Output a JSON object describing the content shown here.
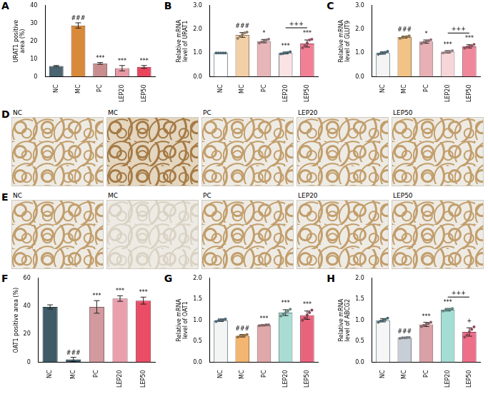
{
  "chart_data": [
    {
      "panel_label": "A",
      "type": "bar",
      "y_label": "URAT1 positive area (%)",
      "categories": [
        "NC",
        "MC",
        "PC",
        "LEP20",
        "LEP50"
      ],
      "values": [
        6,
        28.8,
        7.5,
        4.8,
        5.5
      ],
      "errors": [
        0.3,
        1.5,
        0.5,
        1.5,
        0.8
      ],
      "colors": [
        "#4a6470",
        "#d9893a",
        "#c98c8f",
        "#e79aa6",
        "#e8455f"
      ],
      "ylim": [
        0,
        40
      ],
      "yticks": [
        0,
        10,
        20,
        30,
        40
      ],
      "grid": false,
      "significance": [
        null,
        "###",
        "***",
        "***",
        "***"
      ]
    },
    {
      "panel_label": "B",
      "type": "bar",
      "y_label": "Relative mRNA level of URAT1",
      "categories": [
        "NC",
        "MC",
        "PC",
        "LEP20",
        "LEP50"
      ],
      "values": [
        1.0,
        1.76,
        1.5,
        1.0,
        1.4
      ],
      "errors": [
        0,
        0.1,
        0.07,
        0.04,
        0.15
      ],
      "points": [
        [
          1.0,
          1.0,
          1.0,
          1.0,
          1.0
        ],
        [
          1.62,
          1.7,
          1.78,
          1.85,
          1.88
        ],
        [
          1.42,
          1.47,
          1.5,
          1.55,
          1.58
        ],
        [
          0.96,
          0.98,
          1.0,
          1.02,
          1.05
        ],
        [
          1.22,
          1.3,
          1.42,
          1.55,
          1.58
        ]
      ],
      "colors": [
        "#ffffff",
        "#f3cfa6",
        "#e8b6b9",
        "#fbe3e5",
        "#f27f96"
      ],
      "ylim": [
        0,
        3
      ],
      "yticks": [
        {
          "value": 0,
          "label": "0.0"
        },
        {
          "value": 1,
          "label": "1.0"
        },
        {
          "value": 2,
          "label": "2.0"
        },
        {
          "value": 3,
          "label": "3.0"
        }
      ],
      "grid": false,
      "significance": [
        null,
        "###",
        "*",
        "***",
        "***"
      ],
      "brackets": [
        {
          "text": "+++",
          "from": "LEP20",
          "to": "LEP50"
        }
      ]
    },
    {
      "panel_label": "C",
      "type": "bar",
      "y_label": "Relative mRNA level of GLUT9",
      "categories": [
        "NC",
        "MC",
        "PC",
        "LEP20",
        "LEP50"
      ],
      "values": [
        1.0,
        1.67,
        1.48,
        1.05,
        1.28
      ],
      "errors": [
        0.05,
        0.04,
        0.07,
        0.05,
        0.07
      ],
      "points": [
        [
          0.95,
          0.98,
          1.0,
          1.03,
          1.07
        ],
        [
          1.62,
          1.65,
          1.67,
          1.69,
          1.72
        ],
        [
          1.4,
          1.45,
          1.48,
          1.52,
          1.56
        ],
        [
          1.0,
          1.03,
          1.05,
          1.07,
          1.1
        ],
        [
          1.2,
          1.25,
          1.28,
          1.31,
          1.36
        ]
      ],
      "colors": [
        "#f4f4f4",
        "#f2c287",
        "#e6b0b4",
        "#f6d6d8",
        "#f0889c"
      ],
      "ylim": [
        0,
        3
      ],
      "yticks": [
        {
          "value": 0,
          "label": "0.0"
        },
        {
          "value": 1,
          "label": "1.0"
        },
        {
          "value": 2,
          "label": "2.0"
        },
        {
          "value": 3,
          "label": "3.0"
        }
      ],
      "grid": false,
      "significance": [
        null,
        "###",
        "*",
        "***",
        "***"
      ],
      "brackets": [
        {
          "text": "+++",
          "from": "LEP20",
          "to": "LEP50"
        }
      ]
    },
    {
      "panel_label": "F",
      "type": "bar",
      "y_label": "OAT1 positive area (%)",
      "categories": [
        "NC",
        "MC",
        "PC",
        "LEP20",
        "LEP50"
      ],
      "values": [
        39.5,
        2,
        39.5,
        45.5,
        44
      ],
      "errors": [
        1.5,
        1.5,
        4.5,
        2,
        2.5
      ],
      "colors": [
        "#3f5b68",
        "#33505e",
        "#d29a9e",
        "#ea9fac",
        "#eb4d66"
      ],
      "ylim": [
        0,
        60
      ],
      "yticks": [
        0,
        20,
        40,
        60
      ],
      "grid": false,
      "significance": [
        null,
        "###",
        "***",
        "***",
        "***"
      ]
    },
    {
      "panel_label": "G",
      "type": "bar",
      "y_label": "Relative mRNA level of OAT1",
      "categories": [
        "NC",
        "MC",
        "PC",
        "LEP20",
        "LEP50"
      ],
      "values": [
        1.0,
        0.63,
        0.88,
        1.18,
        1.12
      ],
      "errors": [
        0.03,
        0.03,
        0.01,
        0.07,
        0.1
      ],
      "points": [
        [
          0.97,
          0.99,
          1.0,
          1.01,
          1.03
        ],
        [
          0.6,
          0.62,
          0.63,
          0.64,
          0.66
        ],
        [
          0.87,
          0.88,
          0.88,
          0.89,
          0.89
        ],
        [
          1.1,
          1.15,
          1.18,
          1.22,
          1.26
        ],
        [
          1.0,
          1.05,
          1.12,
          1.18,
          1.24
        ]
      ],
      "colors": [
        "#f4f4f4",
        "#f3b56f",
        "#e0a8aa",
        "#a9ddd4",
        "#e8647d"
      ],
      "ylim": [
        0,
        2
      ],
      "yticks": [
        {
          "value": 0,
          "label": "0.0"
        },
        {
          "value": 0.5,
          "label": "0.5"
        },
        {
          "value": 1,
          "label": "1.0"
        },
        {
          "value": 1.5,
          "label": "1.5"
        },
        {
          "value": 2,
          "label": "2.0"
        }
      ],
      "grid": false,
      "significance": [
        null,
        "###",
        "***",
        "***",
        "***"
      ]
    },
    {
      "panel_label": "H",
      "type": "bar",
      "y_label": "Relative mRNA level of ABCG2",
      "categories": [
        "NC",
        "MC",
        "PC",
        "LEP20",
        "LEP50"
      ],
      "values": [
        1.0,
        0.58,
        0.9,
        1.25,
        0.72
      ],
      "errors": [
        0.04,
        0.01,
        0.05,
        0.03,
        0.1
      ],
      "points": [
        [
          0.95,
          0.98,
          1.0,
          1.02,
          1.05
        ],
        [
          0.57,
          0.58,
          0.58,
          0.59,
          0.59
        ],
        [
          0.85,
          0.88,
          0.9,
          0.92,
          0.95
        ],
        [
          1.22,
          1.24,
          1.25,
          1.26,
          1.28
        ],
        [
          0.6,
          0.65,
          0.72,
          0.78,
          0.84
        ]
      ],
      "colors": [
        "#f6f6f6",
        "#c7ced6",
        "#d9a0a6",
        "#a3ddd3",
        "#ee6f88"
      ],
      "ylim": [
        0,
        2
      ],
      "yticks": [
        {
          "value": 0,
          "label": "0.0"
        },
        {
          "value": 0.5,
          "label": "0.5"
        },
        {
          "value": 1,
          "label": "1.0"
        },
        {
          "value": 1.5,
          "label": "1.5"
        },
        {
          "value": 2,
          "label": "2.0"
        }
      ],
      "grid": false,
      "significance": [
        null,
        "###",
        "***",
        "***",
        "+"
      ],
      "brackets": [
        {
          "text": "+++",
          "from": "LEP20",
          "to": "LEP50"
        }
      ]
    }
  ],
  "image_panels": [
    {
      "panel_label": "D",
      "labels": [
        "NC",
        "MC",
        "PC",
        "LEP20",
        "LEP50"
      ]
    },
    {
      "panel_label": "E",
      "labels": [
        "NC",
        "MC",
        "PC",
        "LEP20",
        "LEP50"
      ]
    }
  ]
}
